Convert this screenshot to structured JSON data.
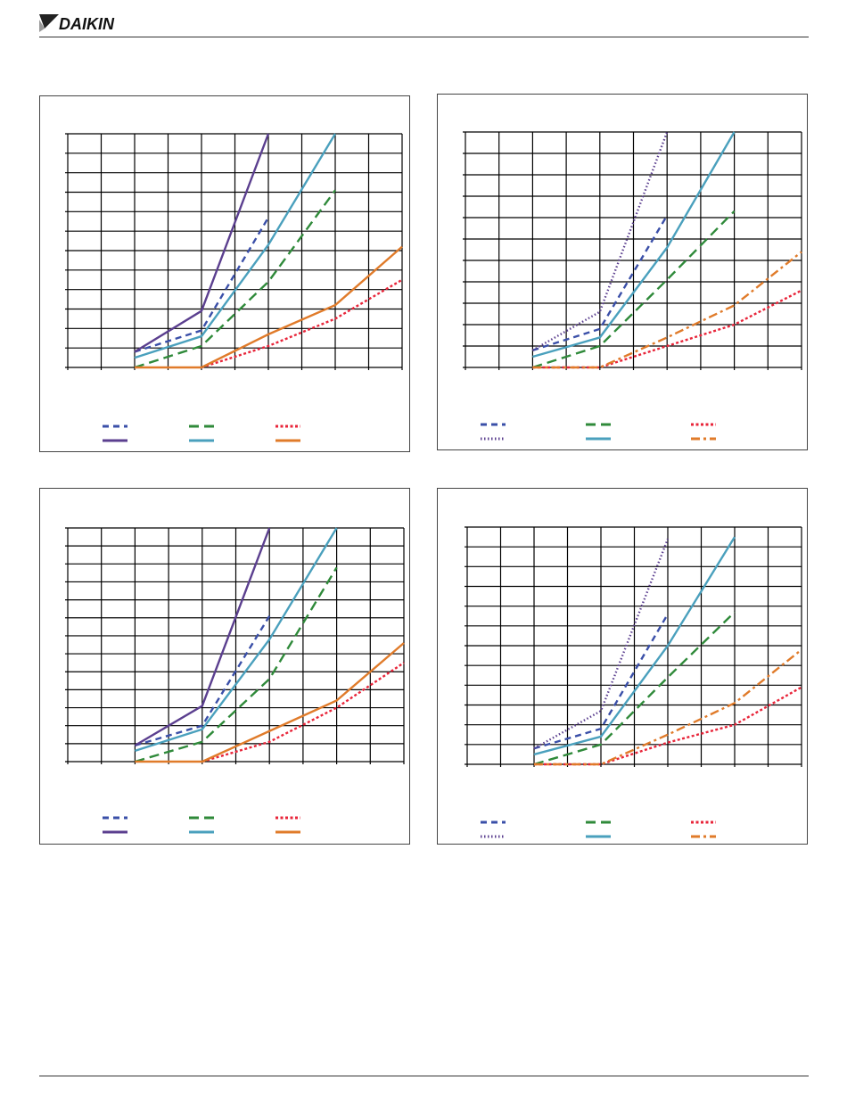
{
  "header": {
    "logo_text": "DAIKIN"
  },
  "colors": {
    "blue": "#3a4fa8",
    "purple": "#5b3f8f",
    "green": "#2f8a3a",
    "teal": "#4aa0bd",
    "red": "#e8253a",
    "orange": "#e07b2a"
  },
  "chart_data": [
    {
      "type": "line",
      "xlim": [
        0,
        10
      ],
      "ylim": [
        0,
        12
      ],
      "grid": true,
      "legend": "bottom",
      "series": [
        {
          "name": "",
          "color": "#3a4fa8",
          "style": "dash",
          "x": [
            2,
            4,
            6
          ],
          "y": [
            0.8,
            1.9,
            7.7
          ]
        },
        {
          "name": "",
          "color": "#2f8a3a",
          "style": "longdash",
          "x": [
            2,
            4,
            6,
            8
          ],
          "y": [
            0,
            1.1,
            4.4,
            9.1
          ]
        },
        {
          "name": "",
          "color": "#e8253a",
          "style": "dot",
          "x": [
            4,
            6,
            8,
            10
          ],
          "y": [
            0,
            1.1,
            2.5,
            4.5
          ]
        },
        {
          "name": "",
          "color": "#5b3f8f",
          "style": "solid",
          "x": [
            2,
            4,
            6
          ],
          "y": [
            0.8,
            2.9,
            12
          ]
        },
        {
          "name": "",
          "color": "#4aa0bd",
          "style": "solid",
          "x": [
            2,
            4,
            6,
            8
          ],
          "y": [
            0.5,
            1.6,
            6.3,
            12
          ]
        },
        {
          "name": "",
          "color": "#e07b2a",
          "style": "solid",
          "x": [
            2,
            4,
            6,
            8,
            10
          ],
          "y": [
            0,
            0,
            1.7,
            3.2,
            6.2
          ]
        }
      ]
    },
    {
      "type": "line",
      "xlim": [
        0,
        10
      ],
      "ylim": [
        0,
        11
      ],
      "grid": true,
      "legend": "bottom",
      "series": [
        {
          "name": "",
          "color": "#3a4fa8",
          "style": "dash",
          "x": [
            2,
            4,
            6
          ],
          "y": [
            0.8,
            1.8,
            7.1
          ]
        },
        {
          "name": "",
          "color": "#2f8a3a",
          "style": "longdash",
          "x": [
            2,
            4,
            6,
            8
          ],
          "y": [
            0,
            1.0,
            4.1,
            7.3
          ]
        },
        {
          "name": "",
          "color": "#e8253a",
          "style": "dot",
          "x": [
            2,
            4,
            6,
            8,
            10
          ],
          "y": [
            0,
            0,
            1.0,
            2.0,
            3.6
          ]
        },
        {
          "name": "",
          "color": "#5b3f8f",
          "style": "dot2",
          "x": [
            2,
            4,
            6
          ],
          "y": [
            0.8,
            2.6,
            11
          ]
        },
        {
          "name": "",
          "color": "#4aa0bd",
          "style": "solid",
          "x": [
            2,
            4,
            6,
            8
          ],
          "y": [
            0.5,
            1.4,
            5.6,
            11
          ]
        },
        {
          "name": "",
          "color": "#e07b2a",
          "style": "dashdot",
          "x": [
            2,
            4,
            6,
            8,
            10
          ],
          "y": [
            0,
            0,
            1.4,
            2.9,
            5.4
          ]
        }
      ]
    },
    {
      "type": "line",
      "xlim": [
        0,
        10
      ],
      "ylim": [
        0,
        13
      ],
      "grid": true,
      "legend": "bottom",
      "series": [
        {
          "name": "",
          "color": "#3a4fa8",
          "style": "dash",
          "x": [
            2,
            4,
            6
          ],
          "y": [
            0.9,
            2.0,
            8.1
          ]
        },
        {
          "name": "",
          "color": "#2f8a3a",
          "style": "longdash",
          "x": [
            2,
            4,
            6,
            8
          ],
          "y": [
            0,
            1.1,
            4.6,
            10.8
          ]
        },
        {
          "name": "",
          "color": "#e8253a",
          "style": "dot",
          "x": [
            4,
            6,
            8,
            10
          ],
          "y": [
            0,
            1.1,
            3.0,
            5.5
          ]
        },
        {
          "name": "",
          "color": "#5b3f8f",
          "style": "solid",
          "x": [
            2,
            4,
            6
          ],
          "y": [
            0.9,
            3.1,
            13
          ]
        },
        {
          "name": "",
          "color": "#4aa0bd",
          "style": "solid",
          "x": [
            2,
            4,
            6,
            8
          ],
          "y": [
            0.6,
            1.8,
            6.8,
            13
          ]
        },
        {
          "name": "",
          "color": "#e07b2a",
          "style": "solid",
          "x": [
            2,
            4,
            6,
            8,
            10
          ],
          "y": [
            0,
            0,
            1.7,
            3.4,
            6.6
          ]
        }
      ]
    },
    {
      "type": "line",
      "xlim": [
        0,
        10
      ],
      "ylim": [
        0,
        12
      ],
      "grid": true,
      "legend": "bottom",
      "series": [
        {
          "name": "",
          "color": "#3a4fa8",
          "style": "dash",
          "x": [
            2,
            4,
            6
          ],
          "y": [
            0.8,
            1.8,
            7.6
          ]
        },
        {
          "name": "",
          "color": "#2f8a3a",
          "style": "longdash",
          "x": [
            2,
            4,
            6,
            8
          ],
          "y": [
            0,
            1.0,
            4.4,
            7.7
          ]
        },
        {
          "name": "",
          "color": "#e8253a",
          "style": "dot",
          "x": [
            2,
            4,
            6,
            8,
            10
          ],
          "y": [
            0,
            0,
            1.1,
            2.0,
            3.9
          ]
        },
        {
          "name": "",
          "color": "#5b3f8f",
          "style": "dot2",
          "x": [
            2,
            4,
            6
          ],
          "y": [
            0.8,
            2.7,
            11.4
          ]
        },
        {
          "name": "",
          "color": "#4aa0bd",
          "style": "solid",
          "x": [
            2,
            4,
            6,
            8
          ],
          "y": [
            0.5,
            1.4,
            6.0,
            11.5
          ]
        },
        {
          "name": "",
          "color": "#e07b2a",
          "style": "dashdot",
          "x": [
            2,
            4,
            6,
            8,
            10
          ],
          "y": [
            0,
            0,
            1.5,
            3.1,
            5.8
          ]
        }
      ]
    }
  ]
}
